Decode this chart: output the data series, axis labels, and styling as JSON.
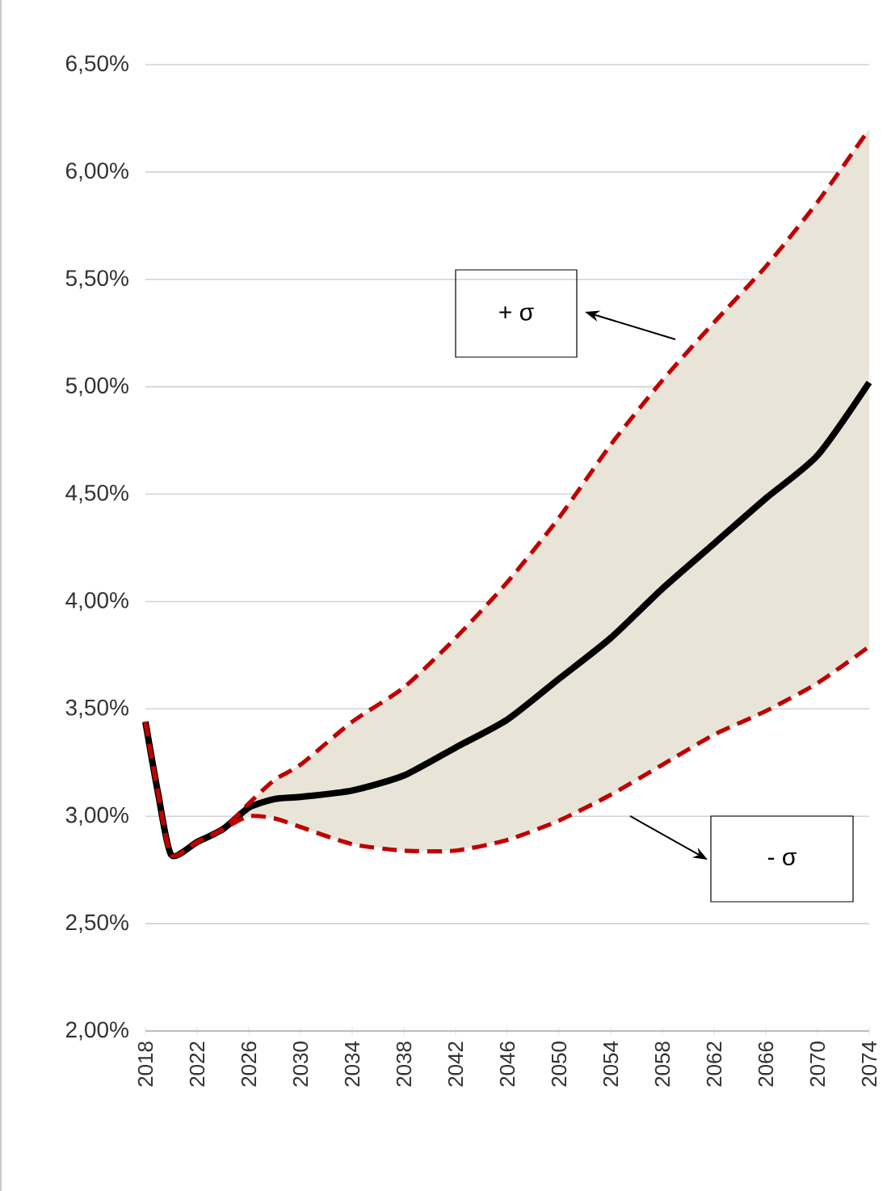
{
  "chart_data": {
    "type": "line",
    "x": [
      2018,
      2019,
      2020,
      2022,
      2024,
      2026,
      2028,
      2030,
      2034,
      2038,
      2042,
      2046,
      2050,
      2054,
      2058,
      2062,
      2066,
      2070,
      2074
    ],
    "series": [
      {
        "color": "#000000",
        "values": [
          3.44,
          3.1,
          2.82,
          2.88,
          2.94,
          3.04,
          3.08,
          3.09,
          3.12,
          3.19,
          3.32,
          3.45,
          3.64,
          3.83,
          4.06,
          4.27,
          4.48,
          4.68,
          5.02
        ],
        "lower": [
          3.44,
          3.1,
          2.82,
          2.88,
          2.94,
          3.0,
          2.99,
          2.95,
          2.87,
          2.84,
          2.84,
          2.89,
          2.98,
          3.1,
          3.24,
          3.38,
          3.49,
          3.62,
          3.79
        ],
        "upper": [
          3.44,
          3.1,
          2.82,
          2.88,
          2.94,
          3.06,
          3.17,
          3.24,
          3.44,
          3.6,
          3.83,
          4.09,
          4.39,
          4.73,
          5.03,
          5.3,
          5.56,
          5.86,
          6.2
        ]
      },
      {
        "color": "#c00000",
        "line_style": "dashed",
        "values": [
          3.44,
          3.1,
          2.82,
          2.88,
          2.94,
          3.06,
          3.17,
          3.24,
          3.44,
          3.6,
          3.83,
          4.09,
          4.39,
          4.73,
          5.03,
          5.3,
          5.56,
          5.86,
          6.2
        ]
      },
      {
        "color": "#c00000",
        "line_style": "dashed",
        "values": [
          3.44,
          3.1,
          2.82,
          2.88,
          2.94,
          3.0,
          2.99,
          2.95,
          2.87,
          2.84,
          2.84,
          2.89,
          2.98,
          3.1,
          3.24,
          3.38,
          3.49,
          3.62,
          3.79
        ]
      }
    ],
    "xlim": [
      2018,
      2074
    ],
    "xticks": [
      2018,
      2022,
      2026,
      2030,
      2034,
      2038,
      2042,
      2046,
      2050,
      2054,
      2058,
      2062,
      2066,
      2070,
      2074
    ],
    "ylim": [
      2,
      6.5
    ],
    "yticks": [
      {
        "value": 2,
        "label": "2,00%"
      },
      {
        "value": 2.5,
        "label": "2,50%"
      },
      {
        "value": 3,
        "label": "3,00%"
      },
      {
        "value": 3.5,
        "label": "3,50%"
      },
      {
        "value": 4,
        "label": "4,00%"
      },
      {
        "value": 4.5,
        "label": "4,50%"
      },
      {
        "value": 5,
        "label": "5,00%"
      },
      {
        "value": 5.5,
        "label": "5,50%"
      },
      {
        "value": 6,
        "label": "6,00%"
      },
      {
        "value": 6.5,
        "label": "6,50%"
      }
    ],
    "grid": "y",
    "marker": "none",
    "line_style": "solid",
    "annotations": [
      "+ σ",
      "- σ"
    ]
  }
}
